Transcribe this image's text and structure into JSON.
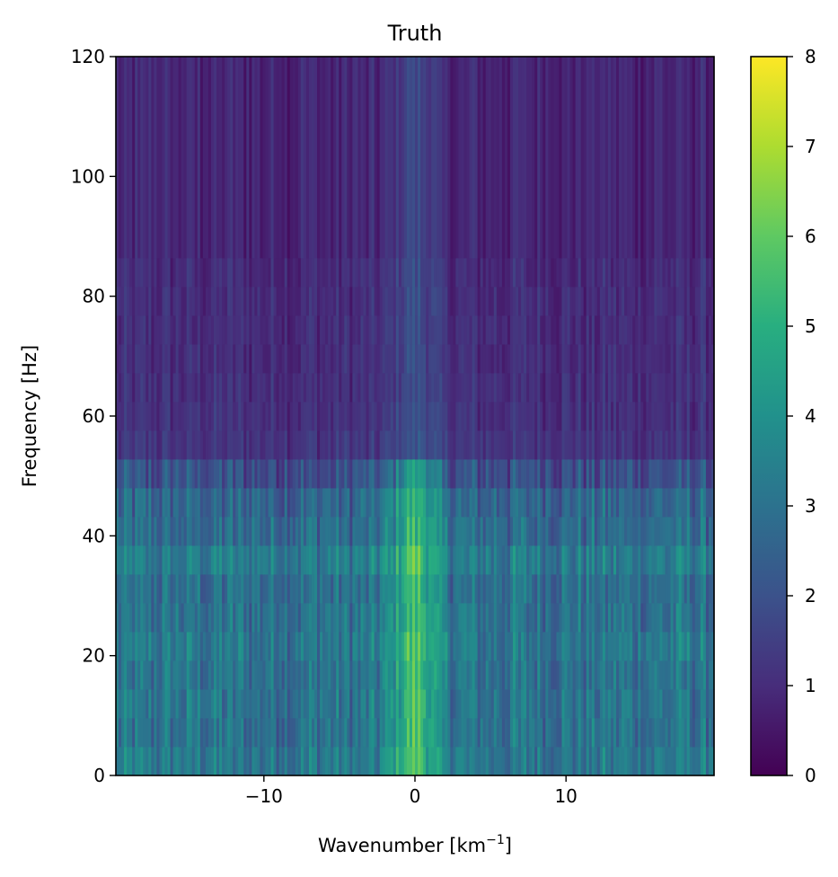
{
  "chart_data": {
    "type": "heatmap",
    "title": "Truth",
    "xlabel": {
      "main": "Wavenumber [km",
      "sup": "−1",
      "close": "]"
    },
    "ylabel": "Frequency [Hz]",
    "xlim": [
      -19.8,
      19.8
    ],
    "ylim": [
      0,
      120
    ],
    "xticks": [
      {
        "value": -10,
        "label": "−10"
      },
      {
        "value": 0,
        "label": "0"
      },
      {
        "value": 10,
        "label": "10"
      }
    ],
    "yticks": [
      {
        "value": 0,
        "label": "0"
      },
      {
        "value": 20,
        "label": "20"
      },
      {
        "value": 40,
        "label": "40"
      },
      {
        "value": 60,
        "label": "60"
      },
      {
        "value": 80,
        "label": "80"
      },
      {
        "value": 100,
        "label": "100"
      },
      {
        "value": 120,
        "label": "120"
      }
    ],
    "colormap": "viridis",
    "colorbar": {
      "range": [
        0,
        8
      ],
      "ticks": [
        {
          "value": 0,
          "label": "0"
        },
        {
          "value": 1,
          "label": "1"
        },
        {
          "value": 2,
          "label": "2"
        },
        {
          "value": 3,
          "label": "3"
        },
        {
          "value": 4,
          "label": "4"
        },
        {
          "value": 5,
          "label": "5"
        },
        {
          "value": 6,
          "label": "6"
        },
        {
          "value": 7,
          "label": "7"
        },
        {
          "value": 8,
          "label": "8"
        }
      ]
    },
    "frequency_bands": [
      {
        "f0": 0,
        "f1": 4.8,
        "level": 3.2
      },
      {
        "f0": 4.8,
        "f1": 9.6,
        "level": 3.0
      },
      {
        "f0": 9.6,
        "f1": 14.4,
        "level": 3.1
      },
      {
        "f0": 14.4,
        "f1": 19.2,
        "level": 3.0
      },
      {
        "f0": 19.2,
        "f1": 24.0,
        "level": 3.2
      },
      {
        "f0": 24.0,
        "f1": 28.8,
        "level": 3.0
      },
      {
        "f0": 28.8,
        "f1": 33.6,
        "level": 2.9
      },
      {
        "f0": 33.6,
        "f1": 38.4,
        "level": 3.3
      },
      {
        "f0": 38.4,
        "f1": 43.2,
        "level": 2.8
      },
      {
        "f0": 43.2,
        "f1": 48.0,
        "level": 2.6
      },
      {
        "f0": 48.0,
        "f1": 52.8,
        "level": 1.9
      },
      {
        "f0": 52.8,
        "f1": 57.6,
        "level": 1.2
      },
      {
        "f0": 57.6,
        "f1": 62.4,
        "level": 1.1
      },
      {
        "f0": 62.4,
        "f1": 67.2,
        "level": 1.05
      },
      {
        "f0": 67.2,
        "f1": 72.0,
        "level": 1.0
      },
      {
        "f0": 72.0,
        "f1": 76.8,
        "level": 1.0
      },
      {
        "f0": 76.8,
        "f1": 81.6,
        "level": 1.0
      },
      {
        "f0": 81.6,
        "f1": 86.4,
        "level": 0.95
      },
      {
        "f0": 86.4,
        "f1": 120,
        "level": 0.85
      }
    ],
    "center_peak": {
      "k": 0,
      "amplitude": 2.5,
      "width": 1.5
    },
    "column_variation": 1.6
  }
}
